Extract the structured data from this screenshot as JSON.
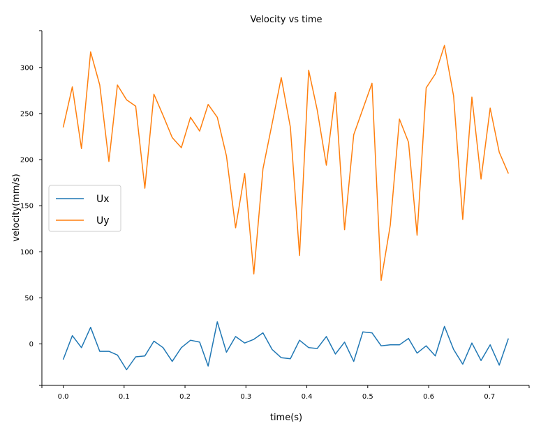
{
  "chart_data": {
    "type": "line",
    "title": "Velocity vs time",
    "xlabel": "time(s)",
    "ylabel": "velocity(mm/s)",
    "xlim": [
      -0.035,
      0.765
    ],
    "ylim": [
      -45,
      340
    ],
    "xticks": [
      0.0,
      0.1,
      0.2,
      0.3,
      0.4,
      0.5,
      0.6,
      0.7
    ],
    "xtick_labels": [
      "0.0",
      "0.1",
      "0.2",
      "0.3",
      "0.4",
      "0.5",
      "0.6",
      "0.7"
    ],
    "yticks": [
      0,
      50,
      100,
      150,
      200,
      250,
      300
    ],
    "ytick_labels": [
      "0",
      "50",
      "100",
      "150",
      "200",
      "250",
      "300"
    ],
    "grid": false,
    "legend_position": "center-left",
    "x": [
      0.0,
      0.015,
      0.03,
      0.045,
      0.06,
      0.075,
      0.089,
      0.104,
      0.119,
      0.134,
      0.149,
      0.164,
      0.179,
      0.194,
      0.209,
      0.224,
      0.238,
      0.253,
      0.268,
      0.283,
      0.298,
      0.313,
      0.328,
      0.343,
      0.358,
      0.373,
      0.388,
      0.403,
      0.417,
      0.432,
      0.447,
      0.462,
      0.477,
      0.492,
      0.507,
      0.522,
      0.537,
      0.552,
      0.567,
      0.581,
      0.596,
      0.611,
      0.626,
      0.641,
      0.656,
      0.671,
      0.686,
      0.701,
      0.716,
      0.731
    ],
    "series": [
      {
        "name": "Ux",
        "color": "#1f77b4",
        "values": [
          -17,
          9,
          -4,
          18,
          -8,
          -8,
          -12,
          -28,
          -14,
          -13,
          3,
          -4,
          -19,
          -4,
          4,
          2,
          -24,
          24,
          -9,
          8,
          1,
          5,
          12,
          -6,
          -15,
          -16,
          4,
          -4,
          -5,
          8,
          -11,
          2,
          -19,
          13,
          12,
          -2,
          -1,
          -1,
          6,
          -10,
          -2,
          -13,
          19,
          -6,
          -22,
          1,
          -18,
          -1,
          -23,
          6
        ]
      },
      {
        "name": "Uy",
        "color": "#ff7f0e",
        "values": [
          235,
          279,
          212,
          317,
          281,
          198,
          281,
          265,
          258,
          169,
          271,
          248,
          224,
          213,
          246,
          231,
          260,
          246,
          204,
          126,
          185,
          76,
          190,
          239,
          289,
          235,
          96,
          297,
          254,
          194,
          273,
          124,
          227,
          255,
          283,
          69,
          129,
          244,
          219,
          118,
          278,
          293,
          324,
          269,
          135,
          268,
          179,
          256,
          208,
          185
        ]
      }
    ]
  }
}
